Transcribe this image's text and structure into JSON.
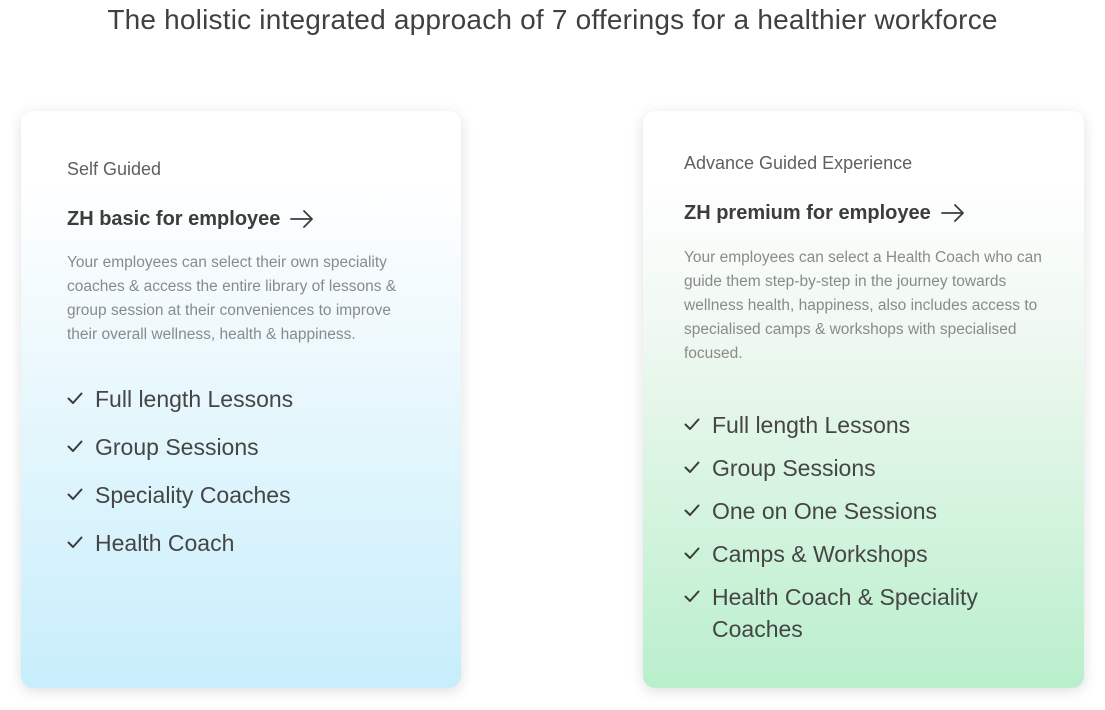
{
  "header": {
    "title": "The holistic integrated approach of 7 offerings for a healthier workforce"
  },
  "plans": [
    {
      "eyebrow": "Self Guided",
      "title": "ZH basic for employee",
      "arrow_icon": "arrow-right-icon",
      "description": "Your employees can select their own speciality coaches & access the entire library of lessons & group session at their conveniences to improve their overall wellness, health & happiness.",
      "features": [
        "Full length Lessons",
        "Group Sessions",
        "Speciality Coaches",
        "Health Coach"
      ],
      "accent_color": "#c7eefb"
    },
    {
      "eyebrow": "Advance Guided Experience",
      "title": "ZH premium for employee",
      "arrow_icon": "arrow-right-icon",
      "description": "Your employees can select a Health Coach who can guide them step-by-step in the journey towards wellness health, happiness, also includes access to specialised camps & workshops with specialised focused.",
      "features": [
        "Full length Lessons",
        "Group Sessions",
        "One on One Sessions",
        "Camps & Workshops",
        "Health Coach & Speciality Coaches"
      ],
      "accent_color": "#b9efcc"
    }
  ],
  "icons": {
    "check": "check-icon",
    "arrow": "arrow-right-icon"
  }
}
